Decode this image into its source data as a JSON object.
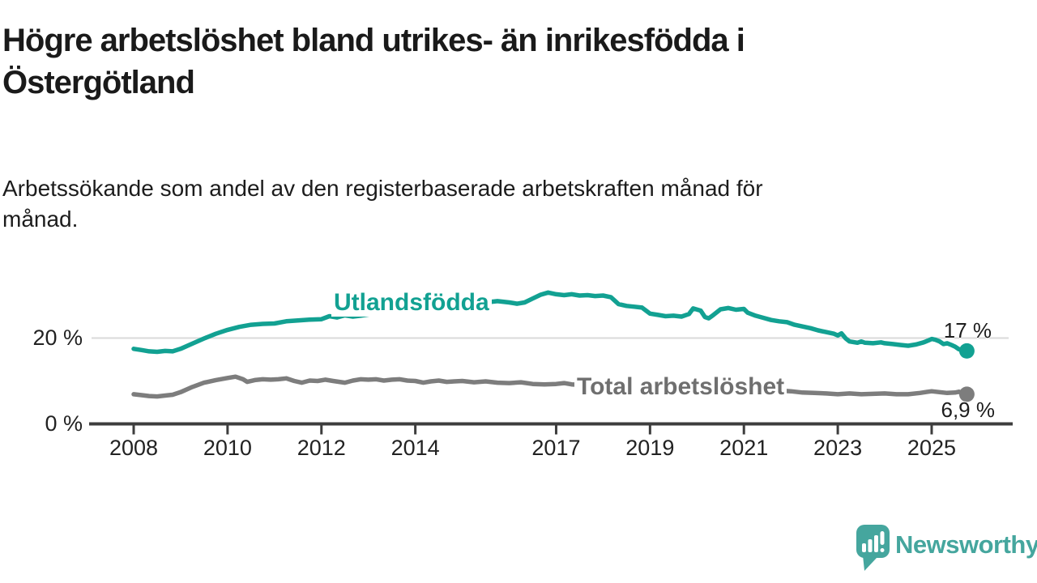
{
  "header": {
    "title_lines": [
      "Högre arbetslöshet bland utrikes- än inrikesfödda i",
      "Östergötland"
    ],
    "subtitle_lines": [
      "Arbetssökande som andel av den registerbaserade arbetskraften månad för",
      "månad."
    ]
  },
  "footer": {
    "brand": "Newsworthy",
    "brand_color": "#45a69e"
  },
  "chart_data": {
    "type": "line",
    "title": "Högre arbetslöshet bland utrikes- än inrikesfödda i Östergötland",
    "subtitle": "Arbetssökande som andel av den registerbaserade arbetskraften månad för månad.",
    "xlabel": "",
    "ylabel": "",
    "ylim": [
      0,
      37
    ],
    "x_range_years": [
      2007.1,
      2026.7
    ],
    "grid": "horizontal-only",
    "legend_position": "inline-labels",
    "style": {
      "axis_color": "#3d3d3d",
      "grid_color": "#dadada",
      "tick_label_color": "#222222"
    },
    "x_axis": {
      "ticks": [
        2008,
        2010,
        2012,
        2014,
        2017,
        2019,
        2021,
        2023,
        2025
      ]
    },
    "y_axis": {
      "ticks": [
        {
          "value": 0,
          "label": "0 %"
        },
        {
          "value": 20,
          "label": "20 %"
        }
      ]
    },
    "series": [
      {
        "name": "Utlandsfödda",
        "color": "#12a192",
        "end_value": 17,
        "end_label": "17 %",
        "points": [
          [
            2008.0,
            17.5
          ],
          [
            2008.17,
            17.2
          ],
          [
            2008.33,
            16.9
          ],
          [
            2008.5,
            16.8
          ],
          [
            2008.67,
            17.0
          ],
          [
            2008.83,
            16.9
          ],
          [
            2009.0,
            17.5
          ],
          [
            2009.25,
            18.7
          ],
          [
            2009.5,
            19.9
          ],
          [
            2009.75,
            21.0
          ],
          [
            2010.0,
            21.9
          ],
          [
            2010.25,
            22.6
          ],
          [
            2010.5,
            23.1
          ],
          [
            2010.75,
            23.3
          ],
          [
            2011.0,
            23.4
          ],
          [
            2011.25,
            23.9
          ],
          [
            2011.5,
            24.1
          ],
          [
            2011.75,
            24.3
          ],
          [
            2012.0,
            24.4
          ],
          [
            2012.17,
            25.1
          ],
          [
            2012.33,
            24.8
          ],
          [
            2012.5,
            25.3
          ],
          [
            2012.67,
            25.0
          ],
          [
            2012.83,
            25.2
          ],
          [
            2013.0,
            25.5
          ],
          [
            2013.25,
            25.8
          ],
          [
            2013.5,
            26.0
          ],
          [
            2013.75,
            26.3
          ],
          [
            2014.0,
            26.5
          ],
          [
            2014.25,
            26.8
          ],
          [
            2014.5,
            27.0
          ],
          [
            2014.75,
            27.3
          ],
          [
            2015.0,
            27.6
          ],
          [
            2015.25,
            27.9
          ],
          [
            2015.5,
            28.3
          ],
          [
            2015.75,
            28.6
          ],
          [
            2016.0,
            28.3
          ],
          [
            2016.17,
            28.0
          ],
          [
            2016.33,
            28.3
          ],
          [
            2016.5,
            29.2
          ],
          [
            2016.67,
            30.1
          ],
          [
            2016.83,
            30.6
          ],
          [
            2017.0,
            30.2
          ],
          [
            2017.17,
            30.0
          ],
          [
            2017.33,
            30.2
          ],
          [
            2017.5,
            29.9
          ],
          [
            2017.67,
            30.0
          ],
          [
            2017.83,
            29.8
          ],
          [
            2018.0,
            29.9
          ],
          [
            2018.17,
            29.5
          ],
          [
            2018.33,
            27.9
          ],
          [
            2018.5,
            27.5
          ],
          [
            2018.67,
            27.3
          ],
          [
            2018.83,
            27.1
          ],
          [
            2019.0,
            25.7
          ],
          [
            2019.17,
            25.4
          ],
          [
            2019.33,
            25.1
          ],
          [
            2019.5,
            25.2
          ],
          [
            2019.67,
            25.0
          ],
          [
            2019.83,
            25.6
          ],
          [
            2019.92,
            26.9
          ],
          [
            2020.08,
            26.4
          ],
          [
            2020.17,
            24.9
          ],
          [
            2020.25,
            24.6
          ],
          [
            2020.33,
            25.2
          ],
          [
            2020.5,
            26.7
          ],
          [
            2020.67,
            27.0
          ],
          [
            2020.83,
            26.6
          ],
          [
            2021.0,
            26.8
          ],
          [
            2021.08,
            25.9
          ],
          [
            2021.25,
            25.2
          ],
          [
            2021.42,
            24.7
          ],
          [
            2021.58,
            24.2
          ],
          [
            2021.75,
            23.9
          ],
          [
            2021.92,
            23.7
          ],
          [
            2022.08,
            23.1
          ],
          [
            2022.25,
            22.7
          ],
          [
            2022.42,
            22.3
          ],
          [
            2022.58,
            21.8
          ],
          [
            2022.75,
            21.4
          ],
          [
            2022.92,
            21.0
          ],
          [
            2023.0,
            20.6
          ],
          [
            2023.08,
            21.1
          ],
          [
            2023.17,
            19.9
          ],
          [
            2023.25,
            19.2
          ],
          [
            2023.42,
            18.9
          ],
          [
            2023.5,
            19.2
          ],
          [
            2023.58,
            18.9
          ],
          [
            2023.75,
            18.8
          ],
          [
            2023.92,
            19.0
          ],
          [
            2024.0,
            18.8
          ],
          [
            2024.17,
            18.6
          ],
          [
            2024.33,
            18.4
          ],
          [
            2024.5,
            18.2
          ],
          [
            2024.67,
            18.5
          ],
          [
            2024.83,
            19.0
          ],
          [
            2024.92,
            19.4
          ],
          [
            2025.0,
            19.8
          ],
          [
            2025.08,
            19.6
          ],
          [
            2025.17,
            19.2
          ],
          [
            2025.25,
            18.6
          ],
          [
            2025.33,
            18.8
          ],
          [
            2025.42,
            18.4
          ],
          [
            2025.5,
            18.0
          ],
          [
            2025.58,
            17.4
          ],
          [
            2025.67,
            17.1
          ],
          [
            2025.75,
            17.0
          ]
        ]
      },
      {
        "name": "Total arbetslöshet",
        "color": "#7d7d7d",
        "end_value": 6.9,
        "end_label": "6,9 %",
        "points": [
          [
            2008.0,
            6.9
          ],
          [
            2008.17,
            6.7
          ],
          [
            2008.33,
            6.5
          ],
          [
            2008.5,
            6.4
          ],
          [
            2008.67,
            6.6
          ],
          [
            2008.83,
            6.8
          ],
          [
            2009.0,
            7.4
          ],
          [
            2009.25,
            8.6
          ],
          [
            2009.5,
            9.6
          ],
          [
            2009.75,
            10.2
          ],
          [
            2010.0,
            10.7
          ],
          [
            2010.17,
            11.0
          ],
          [
            2010.33,
            10.4
          ],
          [
            2010.42,
            9.8
          ],
          [
            2010.58,
            10.2
          ],
          [
            2010.75,
            10.4
          ],
          [
            2010.92,
            10.3
          ],
          [
            2011.08,
            10.4
          ],
          [
            2011.25,
            10.6
          ],
          [
            2011.42,
            10.0
          ],
          [
            2011.58,
            9.6
          ],
          [
            2011.75,
            10.1
          ],
          [
            2011.92,
            10.0
          ],
          [
            2012.08,
            10.3
          ],
          [
            2012.25,
            10.0
          ],
          [
            2012.5,
            9.6
          ],
          [
            2012.67,
            10.1
          ],
          [
            2012.83,
            10.4
          ],
          [
            2013.0,
            10.3
          ],
          [
            2013.17,
            10.4
          ],
          [
            2013.33,
            10.1
          ],
          [
            2013.5,
            10.3
          ],
          [
            2013.67,
            10.4
          ],
          [
            2013.83,
            10.1
          ],
          [
            2014.0,
            10.0
          ],
          [
            2014.17,
            9.6
          ],
          [
            2014.33,
            9.9
          ],
          [
            2014.5,
            10.1
          ],
          [
            2014.67,
            9.8
          ],
          [
            2014.83,
            9.9
          ],
          [
            2015.0,
            10.0
          ],
          [
            2015.25,
            9.7
          ],
          [
            2015.5,
            9.9
          ],
          [
            2015.75,
            9.6
          ],
          [
            2016.0,
            9.5
          ],
          [
            2016.25,
            9.7
          ],
          [
            2016.5,
            9.3
          ],
          [
            2016.75,
            9.2
          ],
          [
            2017.0,
            9.3
          ],
          [
            2017.17,
            9.5
          ],
          [
            2017.33,
            9.2
          ],
          [
            2017.5,
            9.1
          ],
          [
            2017.75,
            9.0
          ],
          [
            2018.0,
            8.9
          ],
          [
            2018.25,
            8.8
          ],
          [
            2018.5,
            8.7
          ],
          [
            2018.75,
            8.6
          ],
          [
            2019.0,
            8.5
          ],
          [
            2019.25,
            8.4
          ],
          [
            2019.5,
            8.4
          ],
          [
            2019.75,
            8.5
          ],
          [
            2020.0,
            8.8
          ],
          [
            2020.25,
            9.4
          ],
          [
            2020.5,
            9.3
          ],
          [
            2020.75,
            9.0
          ],
          [
            2021.0,
            8.7
          ],
          [
            2021.25,
            8.4
          ],
          [
            2021.5,
            8.1
          ],
          [
            2021.75,
            7.8
          ],
          [
            2022.0,
            7.6
          ],
          [
            2022.25,
            7.3
          ],
          [
            2022.5,
            7.2
          ],
          [
            2022.75,
            7.1
          ],
          [
            2023.0,
            6.9
          ],
          [
            2023.25,
            7.1
          ],
          [
            2023.5,
            6.9
          ],
          [
            2023.75,
            7.0
          ],
          [
            2024.0,
            7.1
          ],
          [
            2024.25,
            6.9
          ],
          [
            2024.5,
            6.9
          ],
          [
            2024.75,
            7.2
          ],
          [
            2024.92,
            7.5
          ],
          [
            2025.0,
            7.6
          ],
          [
            2025.17,
            7.4
          ],
          [
            2025.33,
            7.2
          ],
          [
            2025.5,
            7.3
          ],
          [
            2025.58,
            7.5
          ],
          [
            2025.75,
            6.9
          ]
        ]
      }
    ]
  }
}
